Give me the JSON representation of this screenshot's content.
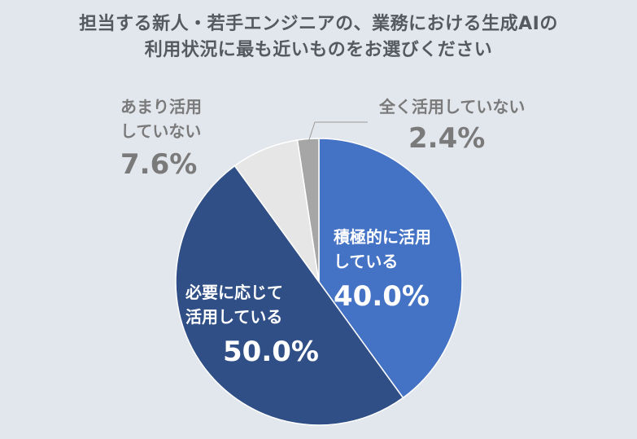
{
  "title": {
    "line1": "担当する新人・若手エンジニアの、業務における生成AIの",
    "line2": "利用状況に最も近いものをお選びください"
  },
  "chart_data": {
    "type": "pie",
    "title": "担当する新人・若手エンジニアの、業務における生成AIの利用状況に最も近いものをお選びください",
    "slices": [
      {
        "label_line1": "積極的に活用",
        "label_line2": "している",
        "value": 40.0,
        "value_label": "40.0%",
        "color": "#4472c4"
      },
      {
        "label_line1": "必要に応じて",
        "label_line2": "活用している",
        "value": 50.0,
        "value_label": "50.0%",
        "color": "#2f4f86"
      },
      {
        "label_line1": "あまり活用",
        "label_line2": "していない",
        "value": 7.6,
        "value_label": "7.6%",
        "color": "#e6e6e6"
      },
      {
        "label_line1": "全く活用していない",
        "label_line2": "",
        "value": 2.4,
        "value_label": "2.4%",
        "color": "#a6a6a6"
      }
    ],
    "start_angle": "12 o'clock",
    "direction": "clockwise",
    "legend": "none"
  }
}
